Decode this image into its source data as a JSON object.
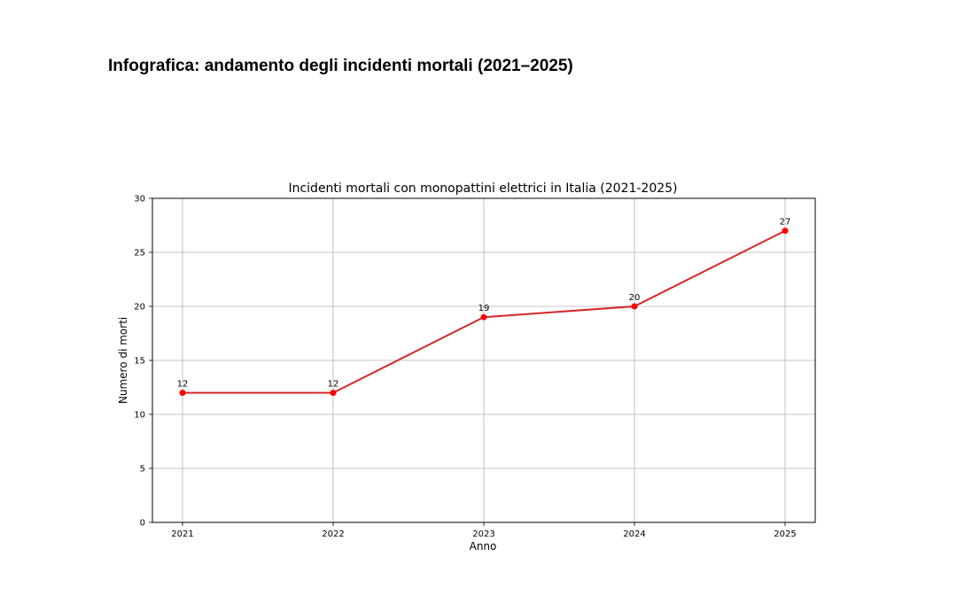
{
  "page": {
    "heading": "Infografica: andamento degli incidenti mortali (2021–2025)"
  },
  "chart_data": {
    "type": "line",
    "title": "Incidenti mortali con monopattini elettrici in Italia (2021-2025)",
    "xlabel": "Anno",
    "ylabel": "Numero di morti",
    "x": [
      "2021",
      "2022",
      "2023",
      "2024",
      "2025"
    ],
    "series": [
      {
        "values": [
          12,
          12,
          19,
          20,
          27
        ],
        "color": "#d62728",
        "marker_color": "#ff0000",
        "data_labels": [
          "12",
          "12",
          "19",
          "20",
          "27"
        ]
      }
    ],
    "ylim": [
      0,
      30
    ],
    "yticks": [
      "0",
      "5",
      "10",
      "15",
      "20",
      "25",
      "30"
    ],
    "grid": true,
    "legend": "none"
  }
}
